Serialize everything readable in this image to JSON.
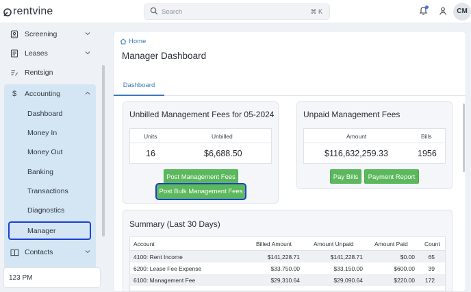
{
  "brand": {
    "name": "rentvine"
  },
  "topbar": {
    "search_placeholder": "Search",
    "search_shortcut": "⌘ K",
    "avatar_initials": "CM"
  },
  "sidebar": {
    "items": [
      {
        "label": "Screening",
        "icon": "screening-icon"
      },
      {
        "label": "Leases",
        "icon": "lease-document-icon"
      },
      {
        "label": "Rentsign",
        "icon": "rentsign-icon"
      },
      {
        "label": "Accounting",
        "icon": "dollar-icon"
      },
      {
        "label": "Contacts",
        "icon": "book-icon"
      }
    ],
    "accounting_sub": [
      "Dashboard",
      "Money In",
      "Money Out",
      "Banking",
      "Transactions",
      "Diagnostics",
      "Manager"
    ],
    "time_label": "123 PM"
  },
  "main": {
    "breadcrumb": "Home",
    "title": "Manager Dashboard",
    "tab": "Dashboard",
    "unbilled": {
      "title": "Unbilled Management Fees for 05-2024",
      "col_units": "Units",
      "col_unbilled": "Unbilled",
      "units": "16",
      "amount": "$6,688.50",
      "btn_post": "Post Management Fees",
      "btn_bulk": "Post Bulk Management Fees"
    },
    "unpaid": {
      "title": "Unpaid Management Fees",
      "col_amount": "Amount",
      "col_bills": "Bills",
      "amount": "$116,632,259.33",
      "bills": "1956",
      "btn_pay": "Pay Bills",
      "btn_report": "Payment Report"
    },
    "summary": {
      "title": "Summary (Last 30 Days)",
      "headers": [
        "Account",
        "Billed Amount",
        "Amount Unpaid",
        "Amount Paid",
        "Count"
      ],
      "rows": [
        [
          "4100: Rent Income",
          "$141,228.71",
          "$141,228.71",
          "$0.00",
          "65"
        ],
        [
          "6200: Lease Fee Expense",
          "$33,750.00",
          "$33,150.00",
          "$600.00",
          "39"
        ],
        [
          "6100: Management Fee",
          "$29,310.64",
          "$29,090.64",
          "$220.00",
          "172"
        ]
      ]
    }
  },
  "colors": {
    "accent": "#3a78b8",
    "button_green": "#5cb85c",
    "highlight": "#1c3fd1",
    "nav_active": "#d4e6f4"
  }
}
